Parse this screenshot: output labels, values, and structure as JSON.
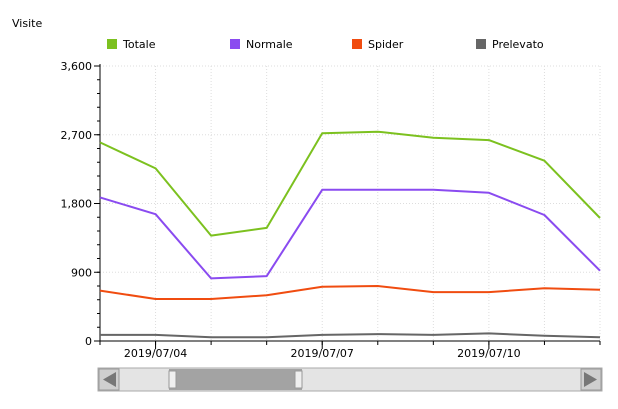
{
  "chart_data": {
    "type": "line",
    "ylabel": "Visite",
    "ylim": [
      0,
      3600
    ],
    "yticks": [
      0,
      900,
      1800,
      2700,
      3600
    ],
    "ytick_labels": [
      "0",
      "900",
      "1,800",
      "2,700",
      "3,600"
    ],
    "x_start": "2019/07/03",
    "x_end": "2019/07/12",
    "xticks": [
      "2019/07/04",
      "2019/07/07",
      "2019/07/10"
    ],
    "grid": true,
    "legend_position": "top",
    "x": [
      "2019/07/03",
      "2019/07/04",
      "2019/07/05",
      "2019/07/06",
      "2019/07/07",
      "2019/07/08",
      "2019/07/09",
      "2019/07/10",
      "2019/07/11",
      "2019/07/12"
    ],
    "series": [
      {
        "name": "Totale",
        "color": "#7cc11f",
        "values": [
          2600,
          2260,
          1380,
          1480,
          2720,
          2740,
          2660,
          2630,
          2360,
          1610
        ]
      },
      {
        "name": "Normale",
        "color": "#8a4bf0",
        "values": [
          1880,
          1660,
          820,
          850,
          1980,
          1980,
          1980,
          1940,
          1650,
          920
        ]
      },
      {
        "name": "Spider",
        "color": "#f04c10",
        "values": [
          660,
          550,
          550,
          600,
          710,
          720,
          640,
          640,
          690,
          670
        ]
      },
      {
        "name": "Prelevato",
        "color": "#666666",
        "values": [
          80,
          80,
          50,
          50,
          80,
          90,
          80,
          100,
          70,
          50
        ]
      }
    ]
  }
}
